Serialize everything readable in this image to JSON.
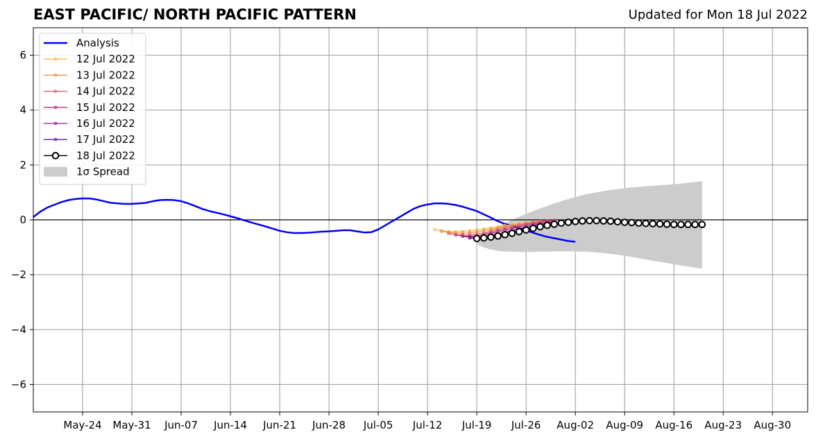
{
  "header": {
    "title": "EAST PACIFIC/ NORTH PACIFIC PATTERN",
    "updated": "Updated for Mon 18 Jul 2022"
  },
  "colors": {
    "analysis": "#0000ee",
    "spread": "#cccccc",
    "grid": "#999999"
  },
  "chart_data": {
    "type": "line",
    "title": "EAST PACIFIC/ NORTH PACIFIC PATTERN",
    "xlabel": "",
    "ylabel": "",
    "x_type": "date",
    "xlim": [
      "2022-05-17",
      "2022-09-04"
    ],
    "ylim": [
      -7,
      7
    ],
    "grid": true,
    "legend_position": "top-left",
    "x_ticks": [
      {
        "date": "2022-05-24",
        "label": "May-24"
      },
      {
        "date": "2022-05-31",
        "label": "May-31"
      },
      {
        "date": "2022-06-07",
        "label": "Jun-07"
      },
      {
        "date": "2022-06-14",
        "label": "Jun-14"
      },
      {
        "date": "2022-06-21",
        "label": "Jun-21"
      },
      {
        "date": "2022-06-28",
        "label": "Jun-28"
      },
      {
        "date": "2022-07-05",
        "label": "Jul-05"
      },
      {
        "date": "2022-07-12",
        "label": "Jul-12"
      },
      {
        "date": "2022-07-19",
        "label": "Jul-19"
      },
      {
        "date": "2022-07-26",
        "label": "Jul-26"
      },
      {
        "date": "2022-08-02",
        "label": "Aug-02"
      },
      {
        "date": "2022-08-09",
        "label": "Aug-09"
      },
      {
        "date": "2022-08-16",
        "label": "Aug-16"
      },
      {
        "date": "2022-08-23",
        "label": "Aug-23"
      },
      {
        "date": "2022-08-30",
        "label": "Aug-30"
      }
    ],
    "y_ticks": [
      {
        "value": 6,
        "label": "6"
      },
      {
        "value": 4,
        "label": "4"
      },
      {
        "value": 2,
        "label": "2"
      },
      {
        "value": 0,
        "label": "0"
      },
      {
        "value": -2,
        "label": "−2"
      },
      {
        "value": -4,
        "label": "−4"
      },
      {
        "value": -6,
        "label": "−6"
      }
    ],
    "legend": [
      {
        "label": "Analysis",
        "color": "#0000ee",
        "style": "line"
      },
      {
        "label": "12 Jul 2022",
        "color": "#f5b942",
        "style": "line-dot"
      },
      {
        "label": "13 Jul 2022",
        "color": "#ee8844",
        "style": "line-dot"
      },
      {
        "label": "14 Jul 2022",
        "color": "#dd5566",
        "style": "line-dot"
      },
      {
        "label": "15 Jul 2022",
        "color": "#b8327a",
        "style": "line-dot"
      },
      {
        "label": "16 Jul 2022",
        "color": "#8b1a96",
        "style": "line-dot"
      },
      {
        "label": "17 Jul 2022",
        "color": "#5a1b8c",
        "style": "line-dot"
      },
      {
        "label": "18 Jul 2022",
        "color": "#000000",
        "style": "open-circle"
      },
      {
        "label": "1σ Spread",
        "color": "#cccccc",
        "style": "patch"
      }
    ],
    "analysis": {
      "start": "2022-05-17",
      "values": [
        0.1,
        0.3,
        0.45,
        0.55,
        0.65,
        0.72,
        0.76,
        0.78,
        0.78,
        0.74,
        0.68,
        0.62,
        0.6,
        0.58,
        0.58,
        0.6,
        0.62,
        0.68,
        0.72,
        0.73,
        0.72,
        0.68,
        0.6,
        0.5,
        0.4,
        0.32,
        0.26,
        0.2,
        0.13,
        0.06,
        -0.02,
        -0.1,
        -0.17,
        -0.24,
        -0.32,
        -0.4,
        -0.45,
        -0.48,
        -0.48,
        -0.47,
        -0.45,
        -0.43,
        -0.42,
        -0.4,
        -0.38,
        -0.38,
        -0.42,
        -0.46,
        -0.45,
        -0.35,
        -0.2,
        -0.05,
        0.1,
        0.25,
        0.4,
        0.5,
        0.56,
        0.6,
        0.6,
        0.58,
        0.54,
        0.48,
        0.4,
        0.32,
        0.2,
        0.08,
        -0.05,
        -0.15,
        -0.22,
        -0.3,
        -0.38,
        -0.47,
        -0.55,
        -0.62,
        -0.67,
        -0.72,
        -0.77,
        -0.8
      ]
    },
    "forecasts": [
      {
        "name": "12 Jul 2022",
        "color": "#f5b942",
        "start": "2022-07-13",
        "values": [
          -0.35,
          -0.4,
          -0.42,
          -0.43,
          -0.42,
          -0.4,
          -0.37,
          -0.33,
          -0.29,
          -0.25,
          -0.21,
          -0.18,
          -0.14,
          -0.11,
          -0.08,
          -0.06,
          -0.04,
          -0.03
        ]
      },
      {
        "name": "13 Jul 2022",
        "color": "#ee8844",
        "start": "2022-07-14",
        "values": [
          -0.42,
          -0.46,
          -0.48,
          -0.49,
          -0.47,
          -0.44,
          -0.4,
          -0.35,
          -0.3,
          -0.25,
          -0.2,
          -0.16,
          -0.12,
          -0.08,
          -0.05,
          -0.03,
          -0.02
        ]
      },
      {
        "name": "14 Jul 2022",
        "color": "#dd5566",
        "start": "2022-07-15",
        "values": [
          -0.5,
          -0.54,
          -0.56,
          -0.55,
          -0.52,
          -0.48,
          -0.43,
          -0.37,
          -0.31,
          -0.25,
          -0.2,
          -0.15,
          -0.11,
          -0.07,
          -0.04,
          -0.02
        ]
      },
      {
        "name": "15 Jul 2022",
        "color": "#b8327a",
        "start": "2022-07-16",
        "values": [
          -0.55,
          -0.59,
          -0.6,
          -0.58,
          -0.54,
          -0.49,
          -0.43,
          -0.37,
          -0.31,
          -0.25,
          -0.2,
          -0.15,
          -0.1,
          -0.06,
          -0.03
        ]
      },
      {
        "name": "16 Jul 2022",
        "color": "#8b1a96",
        "start": "2022-07-17",
        "values": [
          -0.6,
          -0.63,
          -0.64,
          -0.62,
          -0.58,
          -0.52,
          -0.46,
          -0.39,
          -0.32,
          -0.26,
          -0.2,
          -0.15,
          -0.1,
          -0.06
        ]
      },
      {
        "name": "17 Jul 2022",
        "color": "#5a1b8c",
        "start": "2022-07-18",
        "values": [
          -0.66,
          -0.68,
          -0.67,
          -0.64,
          -0.59,
          -0.53,
          -0.46,
          -0.39,
          -0.32,
          -0.26,
          -0.2,
          -0.15,
          -0.1
        ]
      }
    ],
    "current_forecast": {
      "name": "18 Jul 2022",
      "start": "2022-07-19",
      "values": [
        -0.68,
        -0.66,
        -0.63,
        -0.59,
        -0.54,
        -0.49,
        -0.43,
        -0.37,
        -0.31,
        -0.25,
        -0.2,
        -0.16,
        -0.12,
        -0.09,
        -0.06,
        -0.04,
        -0.03,
        -0.03,
        -0.04,
        -0.05,
        -0.07,
        -0.09,
        -0.1,
        -0.12,
        -0.13,
        -0.14,
        -0.15,
        -0.16,
        -0.17,
        -0.17,
        -0.17,
        -0.17,
        -0.17
      ]
    },
    "spread": {
      "name": "1σ Spread",
      "start": "2022-07-19",
      "upper": [
        -0.6,
        -0.48,
        -0.36,
        -0.24,
        -0.12,
        0.0,
        0.11,
        0.22,
        0.32,
        0.42,
        0.51,
        0.6,
        0.68,
        0.76,
        0.83,
        0.9,
        0.96,
        1.0,
        1.05,
        1.09,
        1.12,
        1.15,
        1.18,
        1.2,
        1.22,
        1.24,
        1.26,
        1.28,
        1.3,
        1.32,
        1.35,
        1.38,
        1.41
      ],
      "lower": [
        -0.88,
        -1.0,
        -1.08,
        -1.13,
        -1.15,
        -1.16,
        -1.17,
        -1.17,
        -1.17,
        -1.16,
        -1.16,
        -1.15,
        -1.15,
        -1.15,
        -1.15,
        -1.16,
        -1.17,
        -1.19,
        -1.21,
        -1.24,
        -1.27,
        -1.31,
        -1.35,
        -1.4,
        -1.44,
        -1.49,
        -1.53,
        -1.57,
        -1.62,
        -1.66,
        -1.7,
        -1.74,
        -1.78
      ]
    }
  }
}
